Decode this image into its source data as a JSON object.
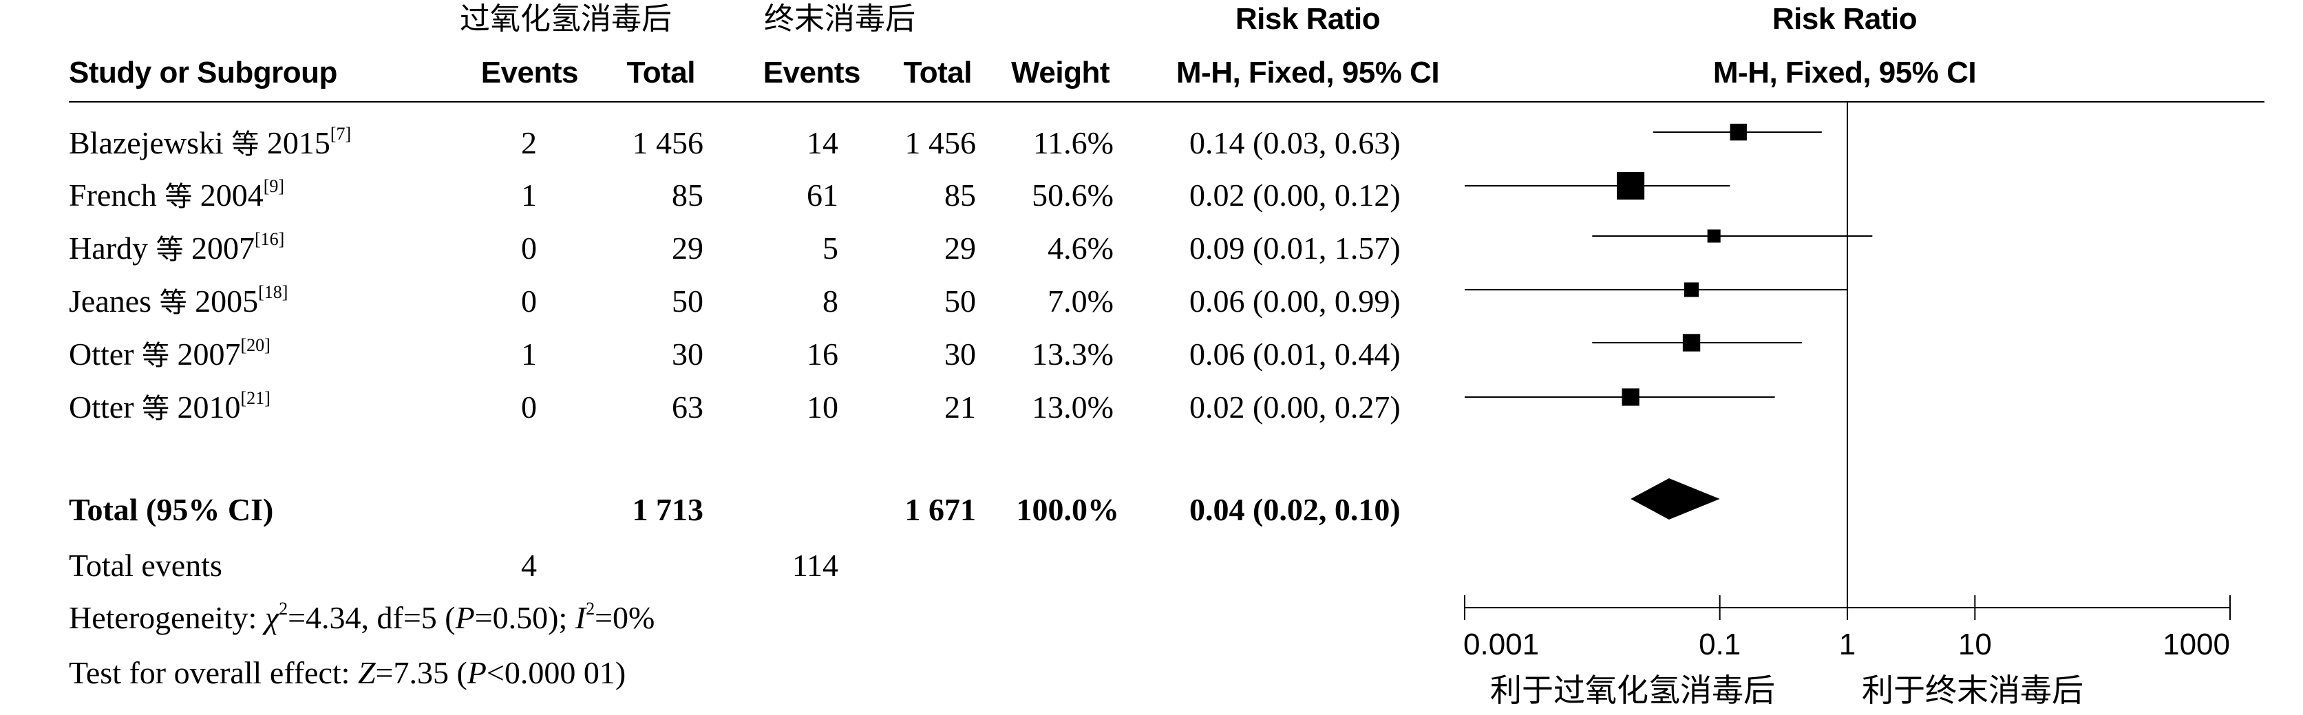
{
  "header": {
    "group_exp": "过氧化氢消毒后",
    "group_ctl": "终末消毒后",
    "rr_title": "Risk Ratio",
    "rr_method": "M-H, Fixed, 95% CI",
    "plot_title": "Risk Ratio",
    "plot_method": "M-H, Fixed, 95% CI",
    "study": "Study or Subgroup",
    "events_exp": "Events",
    "total_exp": "Total",
    "events_ctl": "Events",
    "total_ctl": "Total",
    "weight": "Weight"
  },
  "studies": [
    {
      "name": "Blazejewski",
      "cn": "等",
      "year": "2015",
      "ref": "[7]",
      "events_exp": "2",
      "total_exp": "1 456",
      "events_ctl": "14",
      "total_ctl": "1 456",
      "weight": "11.6%",
      "ci": "0.14 (0.03, 0.63)"
    },
    {
      "name": "French",
      "cn": "等",
      "year": "2004",
      "ref": "[9]",
      "events_exp": "1",
      "total_exp": "85",
      "events_ctl": "61",
      "total_ctl": "85",
      "weight": "50.6%",
      "ci": "0.02 (0.00, 0.12)"
    },
    {
      "name": "Hardy",
      "cn": "等",
      "year": "2007",
      "ref": "[16]",
      "events_exp": "0",
      "total_exp": "29",
      "events_ctl": "5",
      "total_ctl": "29",
      "weight": "4.6%",
      "ci": "0.09 (0.01, 1.57)"
    },
    {
      "name": "Jeanes",
      "cn": "等",
      "year": "2005",
      "ref": "[18]",
      "events_exp": "0",
      "total_exp": "50",
      "events_ctl": "8",
      "total_ctl": "50",
      "weight": "7.0%",
      "ci": "0.06 (0.00, 0.99)"
    },
    {
      "name": "Otter",
      "cn": "等",
      "year": "2007",
      "ref": "[20]",
      "events_exp": "1",
      "total_exp": "30",
      "events_ctl": "16",
      "total_ctl": "30",
      "weight": "13.3%",
      "ci": "0.06 (0.01, 0.44)"
    },
    {
      "name": "Otter",
      "cn": "等",
      "year": "2010",
      "ref": "[21]",
      "events_exp": "0",
      "total_exp": "63",
      "events_ctl": "10",
      "total_ctl": "21",
      "weight": "13.0%",
      "ci": "0.02 (0.00, 0.27)"
    }
  ],
  "total": {
    "label": "Total (95% CI)",
    "total_exp": "1 713",
    "total_ctl": "1 671",
    "weight": "100.0%",
    "ci": "0.04 (0.02, 0.10)"
  },
  "total_events": {
    "label": "Total events",
    "events_exp": "4",
    "events_ctl": "114"
  },
  "heterogeneity": {
    "prefix": "Heterogeneity: ",
    "chi_sym": "χ",
    "chi_sup": "2",
    "chi_val": "=4.34, df=5 (",
    "p_sym": "P",
    "p_val": "=0.50); ",
    "i_sym": "I",
    "i_sup": "2",
    "i_val": "=0%"
  },
  "overall": {
    "prefix": "Test for overall effect: ",
    "z_sym": "Z",
    "z_val": "=7.35 (",
    "p_sym": "P",
    "p_val": "<0.000 01)"
  },
  "favours": {
    "left": "利于过氧化氢消毒后",
    "right": "利于终末消毒后"
  },
  "chart_data": {
    "type": "forest",
    "x_scale": "log",
    "xlim": [
      0.001,
      1000
    ],
    "ticks": [
      "0.001",
      "0.1",
      "1",
      "10",
      "1000"
    ],
    "tick_values": [
      0.001,
      0.1,
      1,
      10,
      1000
    ],
    "null_line": 1,
    "points": [
      {
        "rr": 0.14,
        "lo": 0.03,
        "hi": 0.63,
        "weight": 11.6
      },
      {
        "rr": 0.02,
        "lo": 0.0,
        "hi": 0.12,
        "weight": 50.6
      },
      {
        "rr": 0.09,
        "lo": 0.01,
        "hi": 1.57,
        "weight": 4.6
      },
      {
        "rr": 0.06,
        "lo": 0.0,
        "hi": 0.99,
        "weight": 7.0
      },
      {
        "rr": 0.06,
        "lo": 0.01,
        "hi": 0.44,
        "weight": 13.3
      },
      {
        "rr": 0.02,
        "lo": 0.0,
        "hi": 0.27,
        "weight": 13.0
      }
    ],
    "pooled": {
      "rr": 0.04,
      "lo": 0.02,
      "hi": 0.1
    }
  }
}
